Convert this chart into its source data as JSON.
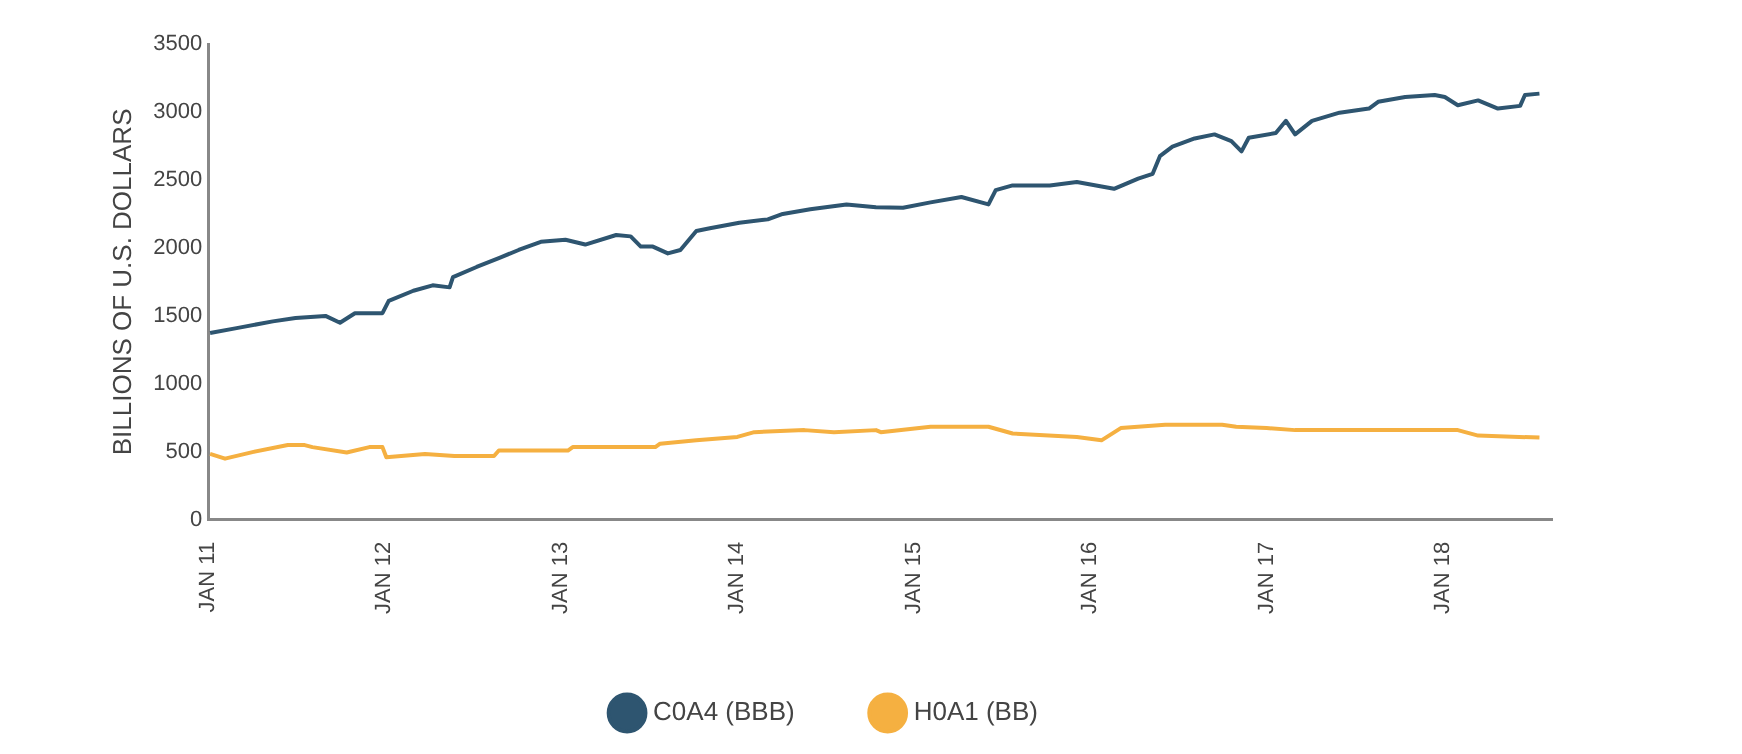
{
  "chart_data": {
    "type": "line",
    "ylabel": "BILLIONS OF U.S. DOLLARS",
    "xlim": [
      "2011-01-01",
      "2018-08-15"
    ],
    "xticks": [
      {
        "value": "2011-01-01",
        "label": "JAN 11"
      },
      {
        "value": "2012-01-01",
        "label": "JAN 12"
      },
      {
        "value": "2013-01-01",
        "label": "JAN 13"
      },
      {
        "value": "2014-01-01",
        "label": "JAN 14"
      },
      {
        "value": "2015-01-01",
        "label": "JAN 15"
      },
      {
        "value": "2016-01-01",
        "label": "JAN 16"
      },
      {
        "value": "2017-01-01",
        "label": "JAN 17"
      },
      {
        "value": "2018-01-01",
        "label": "JAN 18"
      }
    ],
    "ylim": [
      0,
      3500
    ],
    "yticks": [
      0,
      500,
      1000,
      1500,
      2000,
      2500,
      3000,
      3500
    ],
    "grid": false,
    "legend": "bottom",
    "series": [
      {
        "name": "C0A4 (BBB)",
        "color": "#2e5570",
        "x": [
          "2011-01-05",
          "2011-03-01",
          "2011-05-15",
          "2011-07-01",
          "2011-09-01",
          "2011-10-01",
          "2011-11-01",
          "2011-12-28",
          "2012-01-10",
          "2012-03-01",
          "2012-04-10",
          "2012-05-15",
          "2012-05-22",
          "2012-07-10",
          "2012-08-25",
          "2012-10-05",
          "2012-11-20",
          "2013-01-10",
          "2013-02-20",
          "2013-04-25",
          "2013-05-25",
          "2013-06-15",
          "2013-07-10",
          "2013-08-10",
          "2013-09-05",
          "2013-10-08",
          "2013-11-05",
          "2014-01-05",
          "2014-03-05",
          "2014-04-05",
          "2014-06-01",
          "2014-08-15",
          "2014-10-15",
          "2014-12-10",
          "2015-02-05",
          "2015-04-10",
          "2015-06-05",
          "2015-06-20",
          "2015-07-25",
          "2015-10-10",
          "2015-12-05",
          "2016-02-20",
          "2016-04-10",
          "2016-05-10",
          "2016-05-25",
          "2016-06-20",
          "2016-08-05",
          "2016-09-15",
          "2016-10-20",
          "2016-11-10",
          "2016-11-25",
          "2017-01-20",
          "2017-02-10",
          "2017-03-01",
          "2017-04-05",
          "2017-06-01",
          "2017-08-01",
          "2017-08-20",
          "2017-10-15",
          "2017-12-15",
          "2018-01-05",
          "2018-02-01",
          "2018-03-15",
          "2018-04-25",
          "2018-06-10",
          "2018-06-20",
          "2018-07-20"
        ],
        "values": [
          1375,
          1410,
          1460,
          1485,
          1500,
          1450,
          1520,
          1520,
          1610,
          1685,
          1725,
          1710,
          1785,
          1860,
          1925,
          1985,
          2045,
          2060,
          2025,
          2095,
          2085,
          2010,
          2010,
          1960,
          1985,
          2125,
          2145,
          2185,
          2210,
          2250,
          2285,
          2320,
          2300,
          2295,
          2335,
          2375,
          2320,
          2425,
          2460,
          2460,
          2485,
          2435,
          2510,
          2545,
          2675,
          2745,
          2805,
          2835,
          2785,
          2710,
          2810,
          2845,
          2935,
          2835,
          2935,
          2995,
          3025,
          3075,
          3110,
          3125,
          3110,
          3050,
          3085,
          3025,
          3045,
          3125,
          3135
        ]
      },
      {
        "name": "H0A1 (BB)",
        "color": "#f5b041",
        "x": [
          "2011-01-05",
          "2011-02-05",
          "2011-04-05",
          "2011-06-15",
          "2011-07-20",
          "2011-08-05",
          "2011-10-15",
          "2011-12-01",
          "2011-12-28",
          "2012-01-05",
          "2012-03-25",
          "2012-05-25",
          "2012-08-15",
          "2012-08-25",
          "2013-01-15",
          "2013-01-25",
          "2013-07-15",
          "2013-07-25",
          "2013-10-08",
          "2014-01-01",
          "2014-02-05",
          "2014-05-20",
          "2014-07-20",
          "2014-10-15",
          "2014-10-25",
          "2015-02-05",
          "2015-06-05",
          "2015-07-25",
          "2015-12-05",
          "2016-01-25",
          "2016-03-05",
          "2016-06-05",
          "2016-10-01",
          "2016-10-30",
          "2017-01-01",
          "2017-03-01",
          "2018-02-01",
          "2018-03-15",
          "2018-07-20"
        ],
        "values": [
          485,
          450,
          500,
          550,
          550,
          535,
          495,
          535,
          535,
          460,
          485,
          470,
          470,
          510,
          510,
          535,
          535,
          560,
          585,
          610,
          645,
          660,
          645,
          660,
          645,
          685,
          685,
          635,
          610,
          585,
          675,
          700,
          700,
          685,
          675,
          660,
          660,
          620,
          605
        ]
      }
    ]
  }
}
